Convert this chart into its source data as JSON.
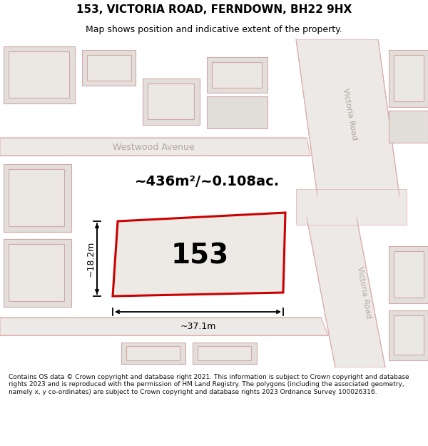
{
  "title": "153, VICTORIA ROAD, FERNDOWN, BH22 9HX",
  "subtitle": "Map shows position and indicative extent of the property.",
  "footer": "Contains OS data © Crown copyright and database right 2021. This information is subject to Crown copyright and database rights 2023 and is reproduced with the permission of HM Land Registry. The polygons (including the associated geometry, namely x, y co-ordinates) are subject to Crown copyright and database rights 2023 Ordnance Survey 100026316.",
  "area_text": "~436m²/~0.108ac.",
  "width_text": "~37.1m",
  "height_text": "~18.2m",
  "number_text": "153",
  "map_bg": "#f7f5f2",
  "road_fill": "#ede9e6",
  "road_edge": "#ddb0b0",
  "building_fill": "#e2dfdb",
  "building_edge": "#d4a8a8",
  "plot_stroke": "#cc0000",
  "plot_fill": "#ede9e5",
  "street_label_color": "#b0a8a0",
  "title_fontsize": 11,
  "subtitle_fontsize": 9,
  "footer_fontsize": 6.5,
  "area_fontsize": 14,
  "number_fontsize": 28,
  "dim_fontsize": 9
}
